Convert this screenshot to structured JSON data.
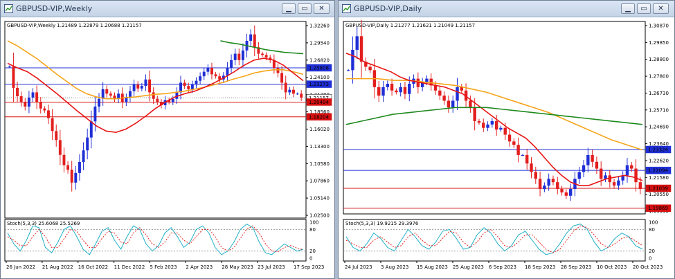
{
  "windows": [
    {
      "title": "GBPUSD-VIP,Weekly",
      "header": "GBPUSD-VIP,Weekly  1.21489 1.22879 1.20688 1.21157",
      "stoch_label": "Stoch(5,3,3) 25.6068 25.5269",
      "price_ticks": [
        "1.32260",
        "1.29540",
        "1.26820",
        "1.24100",
        "1.21380",
        "1.18560",
        "1.16020",
        "1.13300",
        "1.10580",
        "1.07860",
        "1.05140",
        "1.02500"
      ],
      "price_range": [
        1.025,
        1.33
      ],
      "hlines": [
        {
          "price": 1.25808,
          "label": "1.25808",
          "color": "#1f2fd6",
          "text": "#ffffff",
          "style": "solid"
        },
        {
          "price": 1.23273,
          "label": "1.23273",
          "color": "#1f2fd6",
          "text": "#ffffff",
          "style": "solid"
        },
        {
          "price": 1.21157,
          "label": "1.21157",
          "color": "#ffffff",
          "text": "#000000",
          "style": "dotted"
        },
        {
          "price": 1.20494,
          "label": "1.20494",
          "color": "#d51010",
          "text": "#ffffff",
          "style": "solid"
        },
        {
          "price": 1.18204,
          "label": "1.18204",
          "color": "#d51010",
          "text": "#ffffff",
          "style": "solid"
        }
      ],
      "stoch_ticks": [
        "100",
        "80",
        "20",
        "0"
      ],
      "dates": [
        "26 Jun 2022",
        "21 Aug 2022",
        "16 Oct 2022",
        "11 Dec 2022",
        "5 Feb 2023",
        "2 Apr 2023",
        "28 May 2023",
        "23 Jul 2023",
        "17 Sep 2023"
      ],
      "candles": [
        1.26,
        1.227,
        1.214,
        1.205,
        1.198,
        1.212,
        1.22,
        1.205,
        1.195,
        1.192,
        1.18,
        1.16,
        1.146,
        1.123,
        1.107,
        1.1,
        1.08,
        1.095,
        1.112,
        1.13,
        1.15,
        1.175,
        1.198,
        1.21,
        1.225,
        1.218,
        1.215,
        1.21,
        1.218,
        1.205,
        1.212,
        1.222,
        1.232,
        1.226,
        1.23,
        1.24,
        1.22,
        1.21,
        1.205,
        1.2,
        1.208,
        1.205,
        1.21,
        1.22,
        1.235,
        1.23,
        1.225,
        1.232,
        1.238,
        1.245,
        1.252,
        1.258,
        1.248,
        1.245,
        1.24,
        1.246,
        1.258,
        1.27,
        1.28,
        1.27,
        1.285,
        1.3,
        1.31,
        1.29,
        1.28,
        1.278,
        1.274,
        1.27,
        1.258,
        1.25,
        1.235,
        1.22,
        1.224,
        1.218,
        1.218,
        1.212
      ],
      "ma_red": [
        1.265,
        1.258,
        1.252,
        1.242,
        1.23,
        1.218,
        1.205,
        1.192,
        1.18,
        1.168,
        1.16,
        1.158,
        1.163,
        1.172,
        1.183,
        1.195,
        1.205,
        1.213,
        1.218,
        1.222,
        1.228,
        1.235,
        1.243,
        1.252,
        1.262,
        1.27,
        1.273,
        1.27,
        1.262,
        1.25,
        1.238
      ],
      "ma_orange": [
        1.3,
        1.292,
        1.282,
        1.272,
        1.26,
        1.248,
        1.237,
        1.226,
        1.218,
        1.213,
        1.21,
        1.21,
        1.212,
        1.213,
        1.215,
        1.217,
        1.218,
        1.22,
        1.222,
        1.225,
        1.228,
        1.232,
        1.236,
        1.241,
        1.245,
        1.25,
        1.253,
        1.255,
        1.255,
        1.252,
        1.248
      ],
      "ma_green": [
        1.3,
        1.297,
        1.295,
        1.292,
        1.289,
        1.286,
        1.284,
        1.282,
        1.281,
        1.28
      ],
      "stoch_k": [
        70,
        40,
        20,
        50,
        90,
        85,
        30,
        15,
        45,
        80,
        90,
        60,
        25,
        10,
        40,
        75,
        85,
        50,
        25,
        60,
        90,
        80,
        40,
        20,
        35,
        70,
        85,
        60,
        30,
        45,
        80,
        90,
        70,
        30,
        10,
        20,
        45,
        80,
        95,
        85,
        45,
        15,
        10,
        25,
        40,
        30,
        20,
        25
      ],
      "stoch_d": [
        60,
        50,
        35,
        35,
        60,
        80,
        60,
        30,
        30,
        55,
        80,
        75,
        50,
        30,
        30,
        55,
        75,
        70,
        45,
        40,
        70,
        85,
        65,
        40,
        30,
        45,
        70,
        70,
        50,
        40,
        60,
        80,
        80,
        60,
        30,
        20,
        30,
        55,
        80,
        90,
        70,
        40,
        20,
        18,
        30,
        35,
        28,
        24
      ]
    },
    {
      "title": "GBPUSD-VIP,Daily",
      "header": "GBPUSD-VIP,Daily  1.21277 1.21621 1.21049 1.21157",
      "stoch_label": "Stoch(5,3,3) 19.9215 29.3976",
      "price_ticks": [
        "1.30870",
        "1.29850",
        "1.28800",
        "1.27800",
        "1.26730",
        "1.25710",
        "1.24690",
        "1.23640",
        "1.22620",
        "1.21580",
        "1.20550",
        "1.19530"
      ],
      "price_range": [
        1.1953,
        1.3087
      ],
      "hlines": [
        {
          "price": 1.23324,
          "label": "1.23324",
          "color": "#1f2fd6",
          "text": "#ffffff",
          "style": "solid"
        },
        {
          "price": 1.22094,
          "label": "1.22094",
          "color": "#1f2fd6",
          "text": "#ffffff",
          "style": "solid"
        },
        {
          "price": 1.21039,
          "label": "1.21039",
          "color": "#d51010",
          "text": "#ffffff",
          "style": "solid"
        },
        {
          "price": 1.19869,
          "label": "1.19869",
          "color": "#d51010",
          "text": "#ffffff",
          "style": "solid"
        }
      ],
      "stoch_ticks": [
        "100",
        "80",
        "20",
        "0"
      ],
      "dates": [
        "24 Jul 2023",
        "3 Aug 2023",
        "15 Aug 2023",
        "25 Aug 2023",
        "6 Sep 2023",
        "18 Sep 2023",
        "28 Sep 2023",
        "10 Oct 2023",
        "20 Oct 2023"
      ],
      "candles": [
        1.28,
        1.292,
        1.3,
        1.285,
        1.282,
        1.28,
        1.27,
        1.265,
        1.27,
        1.272,
        1.268,
        1.267,
        1.27,
        1.266,
        1.272,
        1.275,
        1.27,
        1.273,
        1.275,
        1.271,
        1.268,
        1.265,
        1.262,
        1.258,
        1.262,
        1.27,
        1.268,
        1.262,
        1.258,
        1.25,
        1.249,
        1.246,
        1.248,
        1.25,
        1.245,
        1.246,
        1.242,
        1.238,
        1.236,
        1.23,
        1.23,
        1.225,
        1.22,
        1.216,
        1.21,
        1.212,
        1.216,
        1.214,
        1.21,
        1.208,
        1.206,
        1.21,
        1.216,
        1.22,
        1.224,
        1.23,
        1.226,
        1.222,
        1.216,
        1.218,
        1.214,
        1.212,
        1.215,
        1.218,
        1.224,
        1.222,
        1.214,
        1.21
      ],
      "ma_red": [
        1.29,
        1.288,
        1.285,
        1.283,
        1.281,
        1.279,
        1.276,
        1.274,
        1.273,
        1.272,
        1.271,
        1.27,
        1.268,
        1.266,
        1.262,
        1.258,
        1.254,
        1.25,
        1.246,
        1.243,
        1.24,
        1.235,
        1.229,
        1.223,
        1.218,
        1.214,
        1.212,
        1.212,
        1.214,
        1.216,
        1.217,
        1.218,
        1.217,
        1.215
      ],
      "ma_orange": [
        1.275,
        1.275,
        1.275,
        1.274,
        1.274,
        1.273,
        1.272,
        1.271,
        1.269,
        1.267,
        1.264,
        1.261,
        1.258,
        1.255,
        1.251,
        1.247,
        1.243,
        1.239,
        1.236,
        1.233
      ],
      "ma_green": [
        1.248,
        1.25,
        1.252,
        1.254,
        1.255,
        1.256,
        1.257,
        1.258,
        1.258,
        1.258,
        1.257,
        1.256,
        1.255,
        1.254,
        1.253,
        1.252,
        1.251,
        1.25,
        1.249,
        1.248
      ],
      "stoch_k": [
        60,
        30,
        20,
        40,
        70,
        55,
        30,
        20,
        50,
        80,
        60,
        35,
        25,
        45,
        75,
        80,
        55,
        25,
        30,
        65,
        85,
        70,
        40,
        20,
        35,
        65,
        75,
        50,
        25,
        10,
        15,
        40,
        70,
        90,
        95,
        80,
        45,
        20,
        30,
        55,
        70,
        60,
        35,
        25
      ],
      "stoch_d": [
        50,
        40,
        30,
        30,
        50,
        60,
        45,
        30,
        35,
        60,
        70,
        50,
        35,
        35,
        55,
        75,
        70,
        45,
        30,
        45,
        70,
        80,
        60,
        35,
        30,
        45,
        65,
        65,
        45,
        25,
        15,
        25,
        50,
        75,
        90,
        85,
        65,
        40,
        30,
        40,
        55,
        60,
        48,
        35
      ]
    }
  ],
  "colors": {
    "bull": "#1f2fd6",
    "bear": "#e31e1e",
    "ma_red": "#e81414",
    "ma_orange": "#f5a418",
    "ma_green": "#1e8a1e",
    "stoch_main": "#20b0c8",
    "stoch_signal": "#e31e1e"
  }
}
